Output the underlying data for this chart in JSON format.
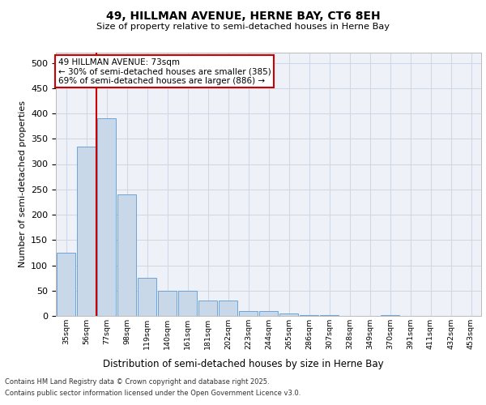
{
  "title_line1": "49, HILLMAN AVENUE, HERNE BAY, CT6 8EH",
  "title_line2": "Size of property relative to semi-detached houses in Herne Bay",
  "xlabel": "Distribution of semi-detached houses by size in Herne Bay",
  "ylabel": "Number of semi-detached properties",
  "categories": [
    "35sqm",
    "56sqm",
    "77sqm",
    "98sqm",
    "119sqm",
    "140sqm",
    "161sqm",
    "181sqm",
    "202sqm",
    "223sqm",
    "244sqm",
    "265sqm",
    "286sqm",
    "307sqm",
    "328sqm",
    "349sqm",
    "370sqm",
    "391sqm",
    "411sqm",
    "432sqm",
    "453sqm"
  ],
  "values": [
    125,
    335,
    390,
    240,
    75,
    50,
    50,
    30,
    30,
    10,
    10,
    5,
    2,
    2,
    0,
    0,
    1,
    0,
    0,
    0,
    0
  ],
  "bar_color": "#c8d8e8",
  "bar_edge_color": "#5b9bd5",
  "grid_color": "#d0d8e8",
  "background_color": "#eef2f8",
  "vline_color": "#cc0000",
  "annotation_title": "49 HILLMAN AVENUE: 73sqm",
  "annotation_line1": "← 30% of semi-detached houses are smaller (385)",
  "annotation_line2": "69% of semi-detached houses are larger (886) →",
  "annotation_box_color": "#cc0000",
  "footnote_line1": "Contains HM Land Registry data © Crown copyright and database right 2025.",
  "footnote_line2": "Contains public sector information licensed under the Open Government Licence v3.0.",
  "ylim": [
    0,
    520
  ],
  "yticks": [
    0,
    50,
    100,
    150,
    200,
    250,
    300,
    350,
    400,
    450,
    500
  ]
}
